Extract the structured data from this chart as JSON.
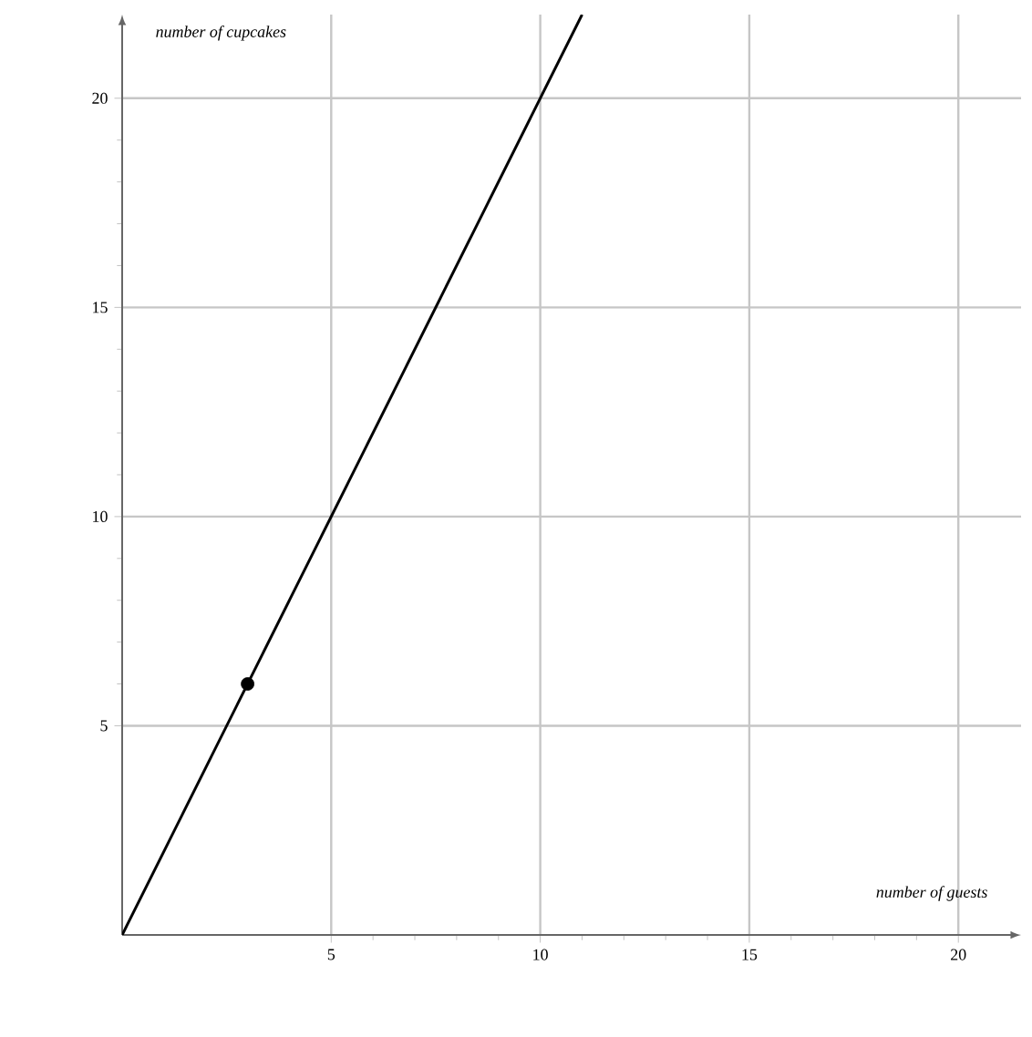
{
  "chart_data": {
    "type": "line",
    "xlabel": "number of guests",
    "ylabel": "number of cupcakes",
    "xlim": [
      0,
      21.5
    ],
    "ylim": [
      0,
      22
    ],
    "xticks": [
      5,
      10,
      15,
      20
    ],
    "yticks": [
      5,
      10,
      15,
      20
    ],
    "grid": true,
    "series": [
      {
        "x": [
          0,
          11
        ],
        "values": [
          0,
          22
        ],
        "color": "#000000",
        "marker": "none"
      },
      {
        "type": "scatter",
        "x": [
          3
        ],
        "values": [
          6
        ],
        "color": "#000000",
        "marker": "circle"
      }
    ]
  }
}
